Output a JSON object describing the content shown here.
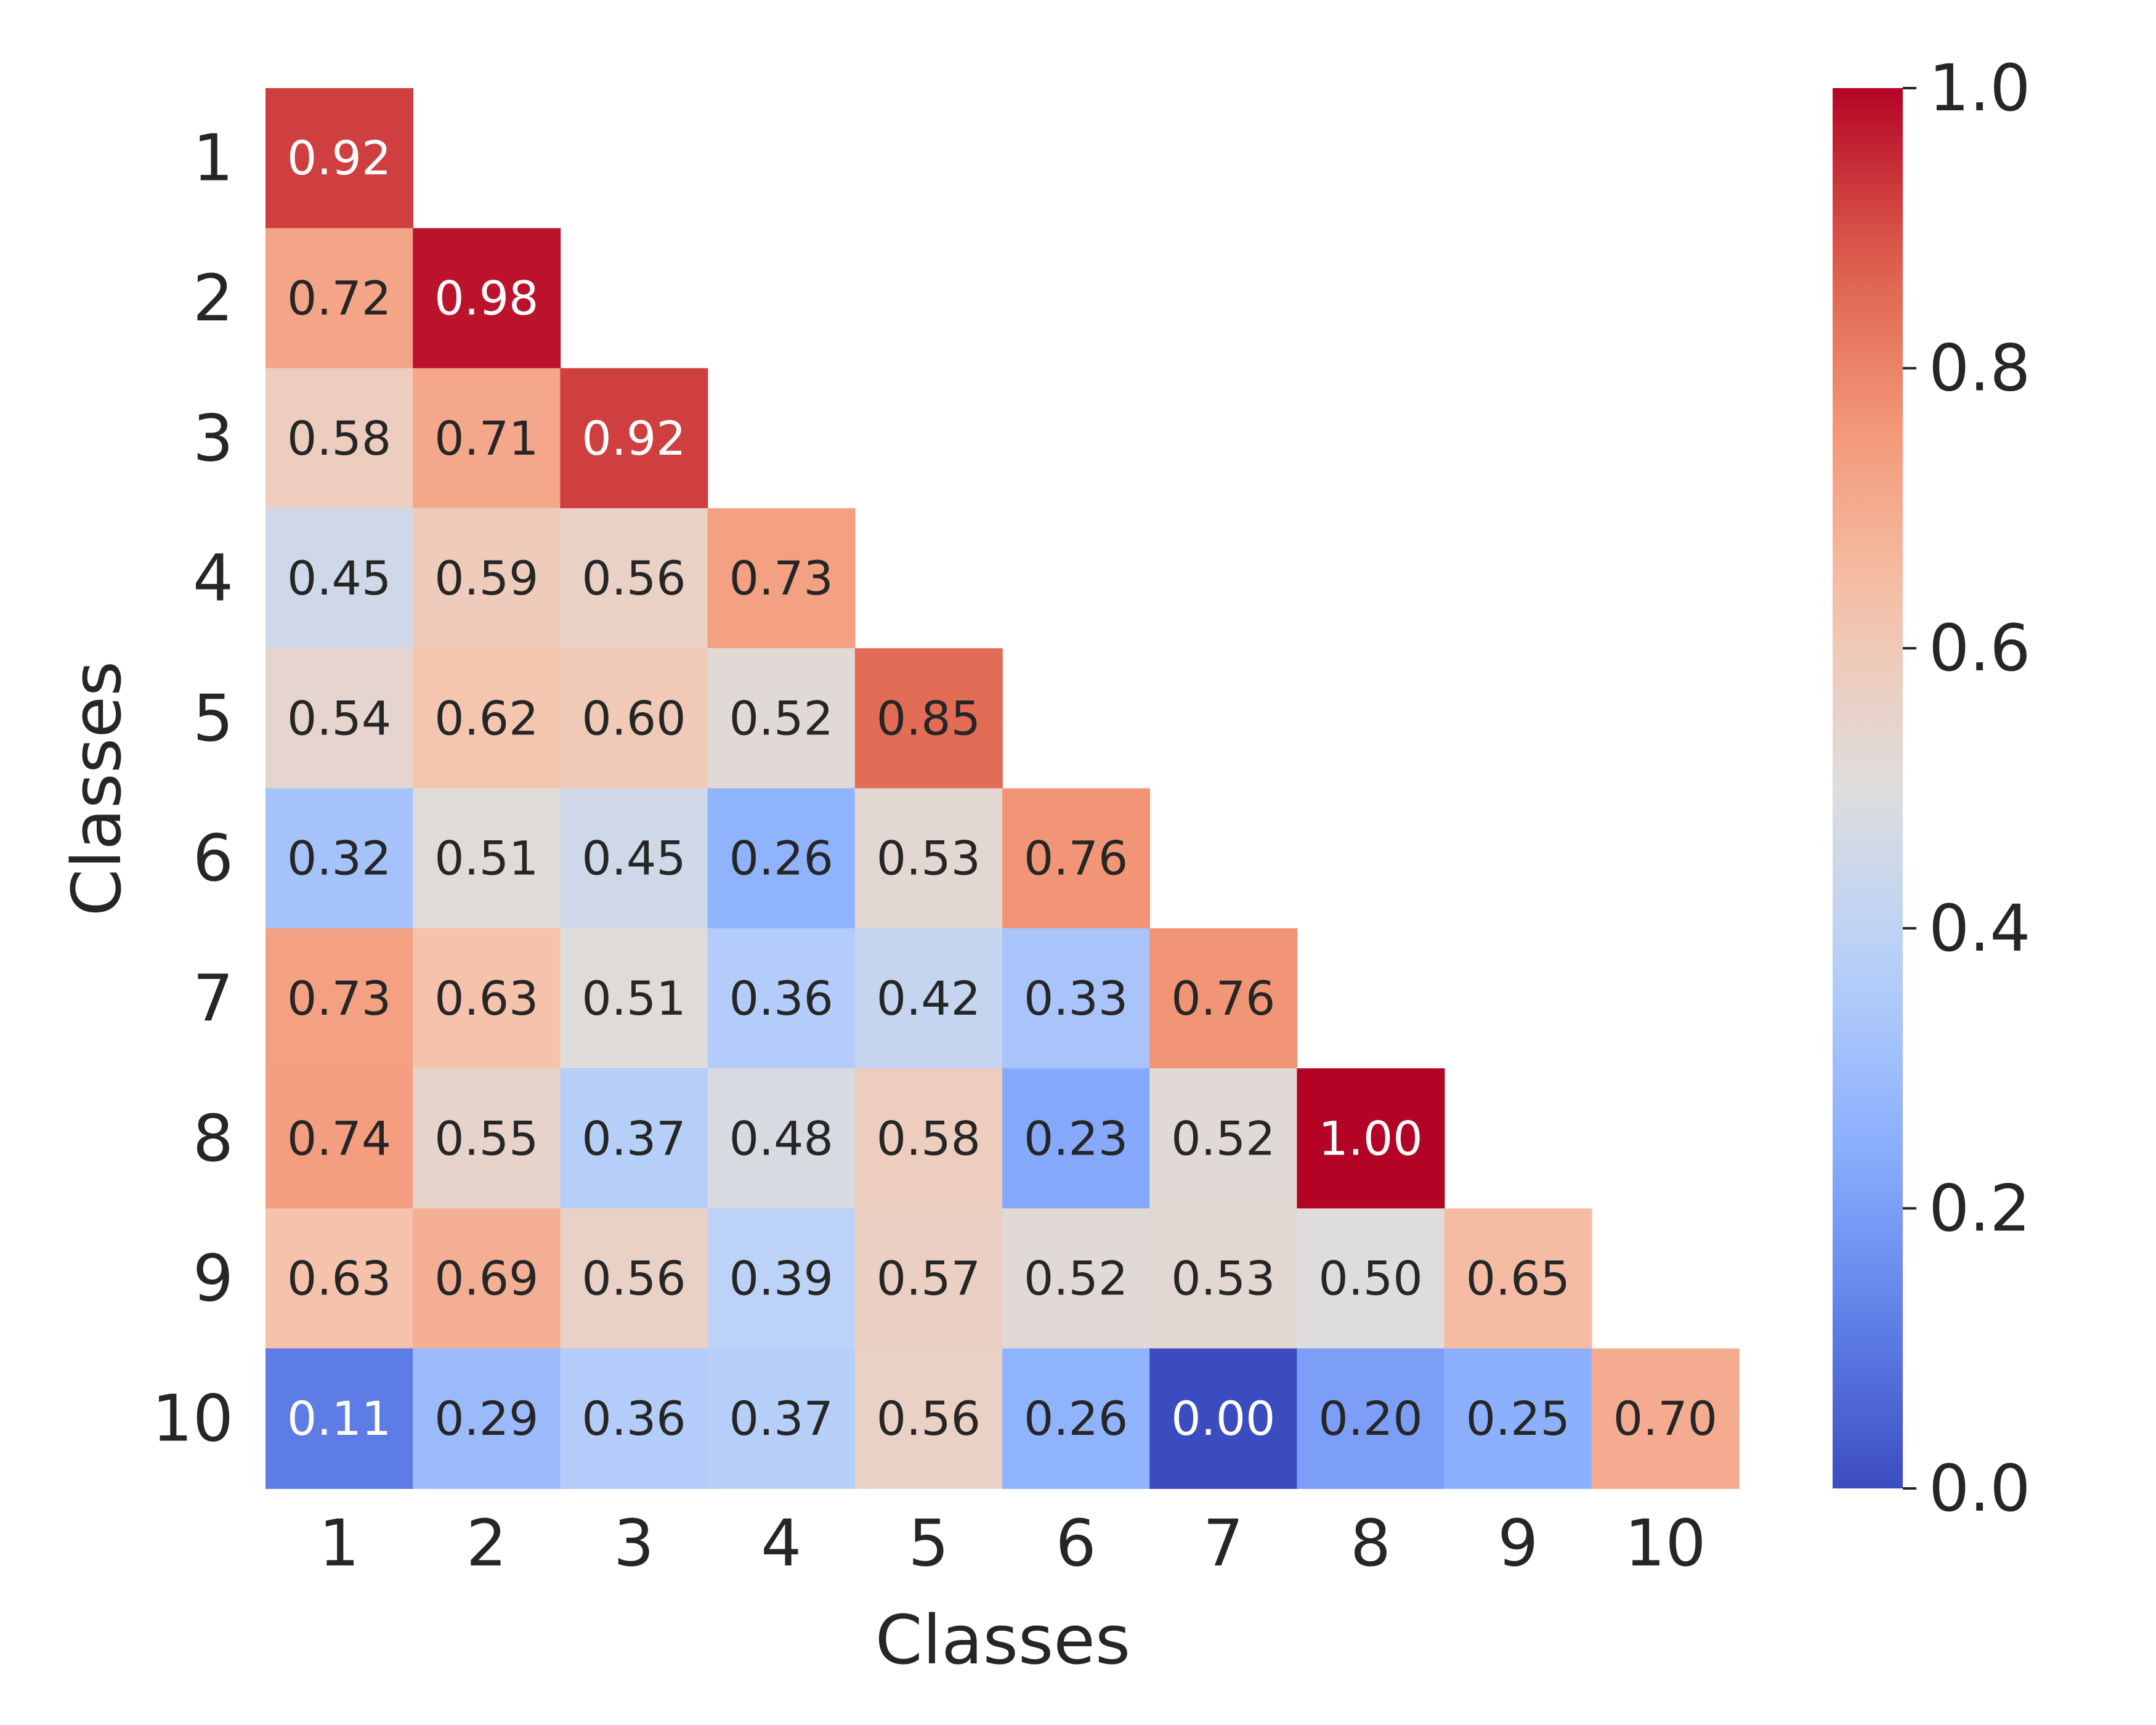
{
  "chart_data": {
    "type": "heatmap",
    "xlabel": "Classes",
    "ylabel": "Classes",
    "x_categories": [
      "1",
      "2",
      "3",
      "4",
      "5",
      "6",
      "7",
      "8",
      "9",
      "10"
    ],
    "y_categories": [
      "1",
      "2",
      "3",
      "4",
      "5",
      "6",
      "7",
      "8",
      "9",
      "10"
    ],
    "matrix": [
      [
        0.92
      ],
      [
        0.72,
        0.98
      ],
      [
        0.58,
        0.71,
        0.92
      ],
      [
        0.45,
        0.59,
        0.56,
        0.73
      ],
      [
        0.54,
        0.62,
        0.6,
        0.52,
        0.85
      ],
      [
        0.32,
        0.51,
        0.45,
        0.26,
        0.53,
        0.76
      ],
      [
        0.73,
        0.63,
        0.51,
        0.36,
        0.42,
        0.33,
        0.76
      ],
      [
        0.74,
        0.55,
        0.37,
        0.48,
        0.58,
        0.23,
        0.52,
        1.0
      ],
      [
        0.63,
        0.69,
        0.56,
        0.39,
        0.57,
        0.52,
        0.53,
        0.5,
        0.65
      ],
      [
        0.11,
        0.29,
        0.36,
        0.37,
        0.56,
        0.26,
        0.0,
        0.2,
        0.25,
        0.7
      ]
    ],
    "value_format_decimals": 2,
    "colormap": "coolwarm",
    "colorbar": {
      "min": 0.0,
      "max": 1.0,
      "ticks": [
        0.0,
        0.2,
        0.4,
        0.6,
        0.8,
        1.0
      ],
      "tick_labels": [
        "0.0",
        "0.2",
        "0.4",
        "0.6",
        "0.8",
        "1.0"
      ]
    },
    "mask": "upper-triangle",
    "grid": false
  }
}
